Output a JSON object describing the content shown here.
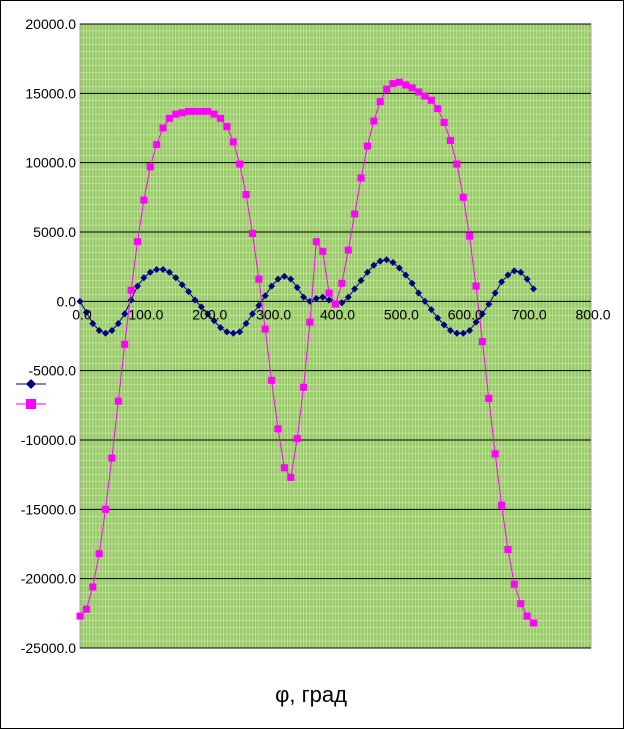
{
  "chart_data": {
    "type": "scatter",
    "title": "",
    "xlabel": "φ, град",
    "ylabel": "",
    "xlim": [
      0,
      800
    ],
    "ylim": [
      -25000,
      20000
    ],
    "x_ticks": [
      0,
      100,
      200,
      300,
      400,
      500,
      600,
      700,
      800
    ],
    "y_ticks": [
      20000,
      15000,
      10000,
      5000,
      0,
      -5000,
      -10000,
      -15000,
      -20000,
      -25000
    ],
    "x_tick_labels": [
      "0.0",
      "100.0",
      "200.0",
      "300.0",
      "400.0",
      "500.0",
      "600.0",
      "700.0",
      "800.0"
    ],
    "y_tick_labels": [
      "20000.0",
      "15000.0",
      "10000.0",
      "5000.0",
      "0.0",
      "-5000.0",
      "-10000.0",
      "-15000.0",
      "-20000.0",
      "-25000.0"
    ],
    "grid": true,
    "legend": "left",
    "plot_background": "#99cc66",
    "minor_grid_color": "#ffffff",
    "major_grid_color": "#000000",
    "series": [
      {
        "marker": "diamond",
        "color": "#000080",
        "x": [
          0,
          10,
          20,
          30,
          40,
          50,
          60,
          70,
          80,
          90,
          100,
          110,
          120,
          130,
          140,
          150,
          160,
          170,
          180,
          190,
          200,
          210,
          220,
          230,
          240,
          250,
          260,
          270,
          280,
          290,
          300,
          310,
          320,
          330,
          340,
          350,
          360,
          370,
          380,
          390,
          400,
          410,
          420,
          430,
          440,
          450,
          460,
          470,
          480,
          490,
          500,
          510,
          520,
          530,
          540,
          550,
          560,
          570,
          580,
          590,
          600,
          610,
          620,
          630,
          640,
          650,
          660,
          670,
          680,
          690,
          700,
          710
        ],
        "y": [
          0,
          -800,
          -1600,
          -2100,
          -2300,
          -2100,
          -1600,
          -900,
          100,
          1100,
          1700,
          2100,
          2300,
          2300,
          2100,
          1700,
          1200,
          700,
          100,
          -400,
          -900,
          -1400,
          -1900,
          -2200,
          -2300,
          -2200,
          -1600,
          -900,
          -300,
          400,
          1100,
          1600,
          1800,
          1600,
          1000,
          300,
          0,
          200,
          300,
          100,
          -200,
          -100,
          300,
          900,
          1500,
          2100,
          2600,
          2900,
          3000,
          2800,
          2400,
          1900,
          1300,
          600,
          0,
          -600,
          -1200,
          -1700,
          -2100,
          -2300,
          -2300,
          -2100,
          -1500,
          -900,
          -200,
          600,
          1400,
          1900,
          2200,
          2100,
          1600,
          900
        ]
      },
      {
        "marker": "square",
        "color": "#ff00ff",
        "x": [
          0,
          10,
          20,
          30,
          40,
          50,
          60,
          70,
          80,
          90,
          100,
          110,
          120,
          130,
          140,
          150,
          160,
          170,
          180,
          190,
          200,
          210,
          220,
          230,
          240,
          250,
          260,
          270,
          280,
          290,
          300,
          310,
          320,
          330,
          340,
          350,
          360,
          370,
          380,
          390,
          400,
          410,
          420,
          430,
          440,
          450,
          460,
          470,
          480,
          490,
          500,
          510,
          520,
          530,
          540,
          550,
          560,
          570,
          580,
          590,
          600,
          610,
          620,
          630,
          640,
          650,
          660,
          670,
          680,
          690,
          700,
          710
        ],
        "y": [
          -22700,
          -22200,
          -20600,
          -18200,
          -15000,
          -11300,
          -7200,
          -3100,
          800,
          4300,
          7300,
          9700,
          11300,
          12500,
          13200,
          13500,
          13600,
          13700,
          13700,
          13700,
          13700,
          13500,
          13200,
          12600,
          11500,
          9900,
          7700,
          4900,
          1600,
          -2000,
          -5700,
          -9200,
          -12000,
          -12700,
          -9900,
          -6200,
          -1500,
          4300,
          3600,
          600,
          -200,
          1300,
          3700,
          6300,
          8900,
          11200,
          13000,
          14400,
          15300,
          15700,
          15800,
          15600,
          15400,
          15100,
          14800,
          14500,
          13900,
          12900,
          11600,
          9900,
          7500,
          4700,
          1100,
          -2900,
          -7000,
          -11000,
          -14700,
          -17900,
          -20400,
          -21800,
          -22700,
          -23200
        ]
      }
    ]
  }
}
